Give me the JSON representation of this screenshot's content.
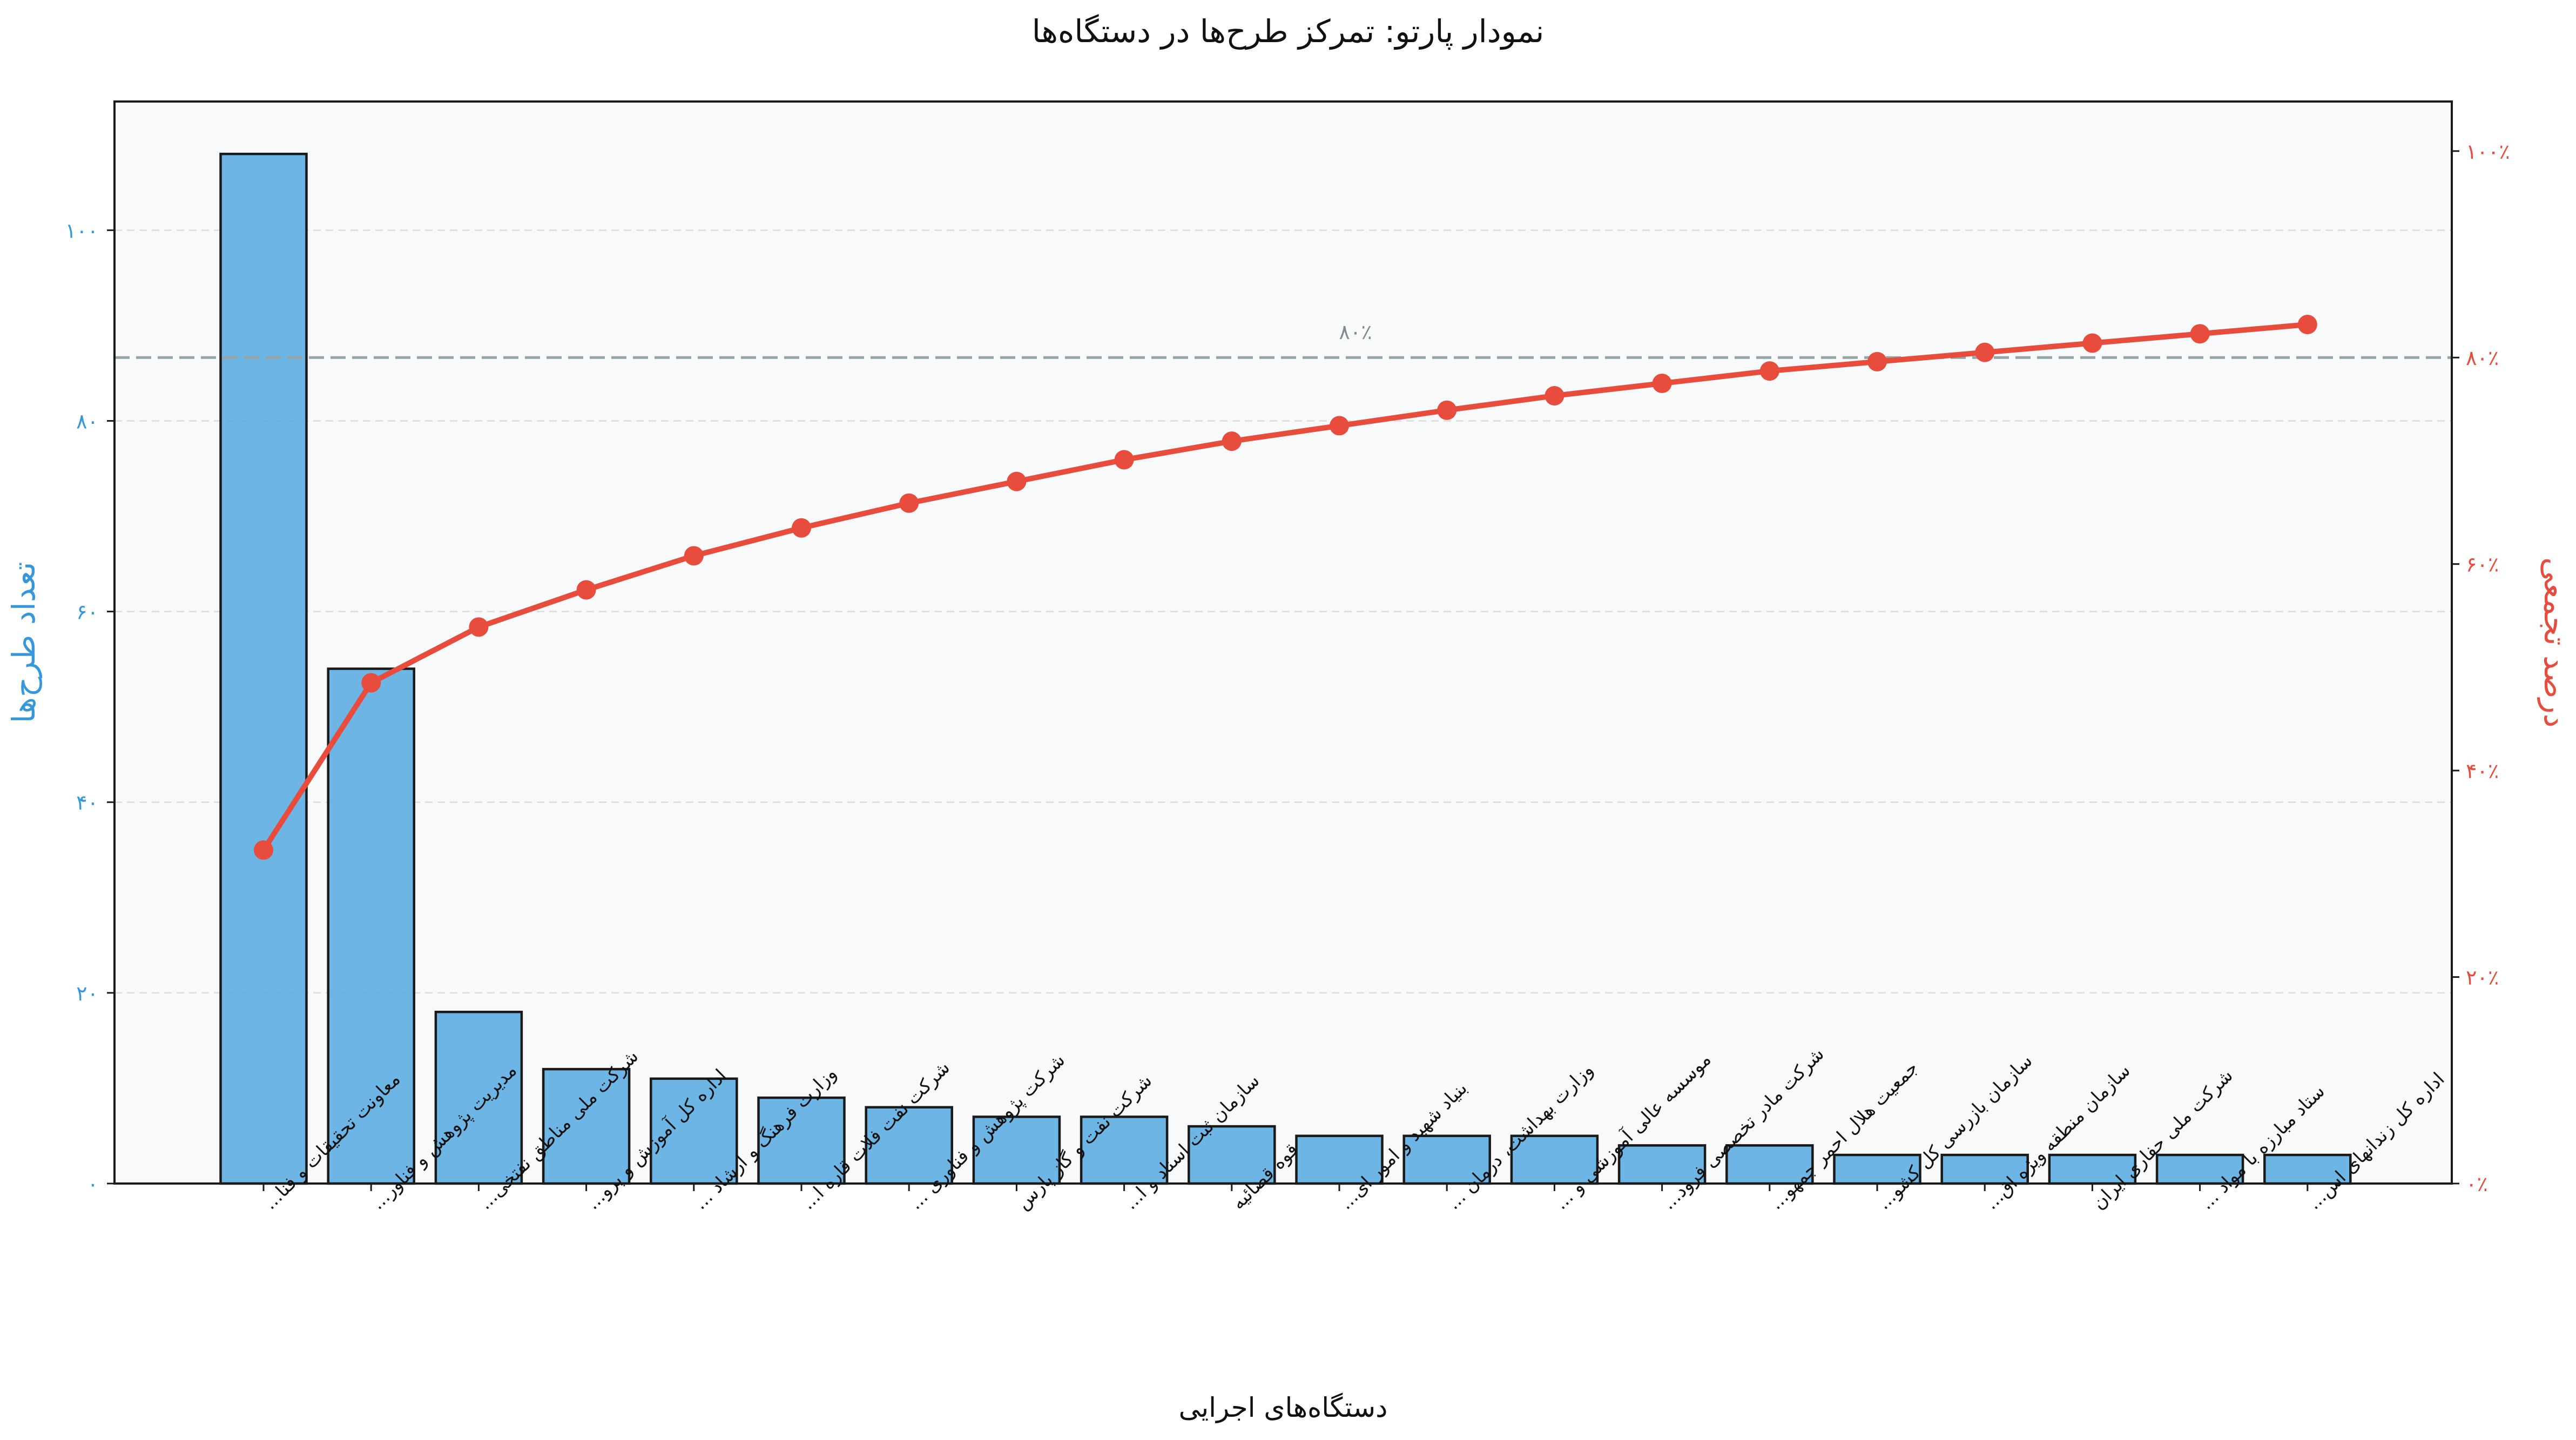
{
  "chart_data": {
    "type": "bar",
    "title": "نمودار پارتو: تمرکز طرح‌ها در دستگاه‌ها",
    "xlabel": "دستگاه‌های اجرایی",
    "ylabel": "تعداد طرح‌ها",
    "y2label": "درصد تجمعی",
    "ylim": [
      0,
      113.5
    ],
    "y2lim": [
      0,
      104.8
    ],
    "y_ticks": [
      {
        "value": 0,
        "label": "۰"
      },
      {
        "value": 20,
        "label": "۲۰"
      },
      {
        "value": 40,
        "label": "۴۰"
      },
      {
        "value": 60,
        "label": "۶۰"
      },
      {
        "value": 80,
        "label": "۸۰"
      },
      {
        "value": 100,
        "label": "۱۰۰"
      }
    ],
    "y2_ticks": [
      {
        "value": 0,
        "label": "۰٪"
      },
      {
        "value": 20,
        "label": "۲۰٪"
      },
      {
        "value": 40,
        "label": "۴۰٪"
      },
      {
        "value": 60,
        "label": "۶۰٪"
      },
      {
        "value": 80,
        "label": "۸۰٪"
      },
      {
        "value": 100,
        "label": "۱۰۰٪"
      }
    ],
    "categories": [
      "معاونت تحقیقات و فنا...",
      "مدیریت پژوهش و فناور...",
      "شرکت ملی مناطق نفتخی...",
      "اداره کل آموزش و پرو...",
      "وزارت فرهنگ و ارشاد ...",
      "شرکت نفت فلات قاره ا...",
      "شرکت پژوهش و فناوری ...",
      "شرکت نفت و گاز پارس",
      "سازمان ثبت اسناد و ا...",
      "قوه قضائیه",
      "بنیاد شهید و امور ای...",
      "وزارت بهداشت، درمان ...",
      "موسسه عالی آموزشی و ...",
      "شرکت مادر تخصصی فرود...",
      "جمعیت هلال احمر جمهو...",
      "سازمان بازرسی کل کشو...",
      "سازمان منطقه ویژه اق...",
      "شرکت ملی حفاری ایران",
      "ستاد مبارزه با مواد ...",
      "اداره کل زندانهای اس..."
    ],
    "series": [
      {
        "type": "bar",
        "axis": "left",
        "values": [
          108,
          54,
          18,
          12,
          11,
          9,
          8,
          7,
          7,
          6,
          5,
          5,
          5,
          4,
          4,
          3,
          3,
          3,
          3,
          3
        ]
      },
      {
        "type": "line",
        "axis": "right",
        "values": [
          32.3,
          48.5,
          53.9,
          57.5,
          60.8,
          63.5,
          65.9,
          68.0,
          70.1,
          71.9,
          73.4,
          74.9,
          76.3,
          77.5,
          78.7,
          79.6,
          80.5,
          81.4,
          82.3,
          83.2
        ]
      }
    ],
    "reference_line": {
      "axis": "right",
      "value": 80,
      "label": "۸۰٪"
    },
    "grid": true,
    "colors": {
      "bar_fill": "#5DADE2",
      "bar_edge": "#1a1a1a",
      "line": "#E74C3C",
      "left_axis": "#3498DB",
      "right_axis": "#E74C3C",
      "reference": "#95A5A6",
      "plot_bg": "#F8F9FA",
      "grid": "#dcdcdc"
    }
  }
}
